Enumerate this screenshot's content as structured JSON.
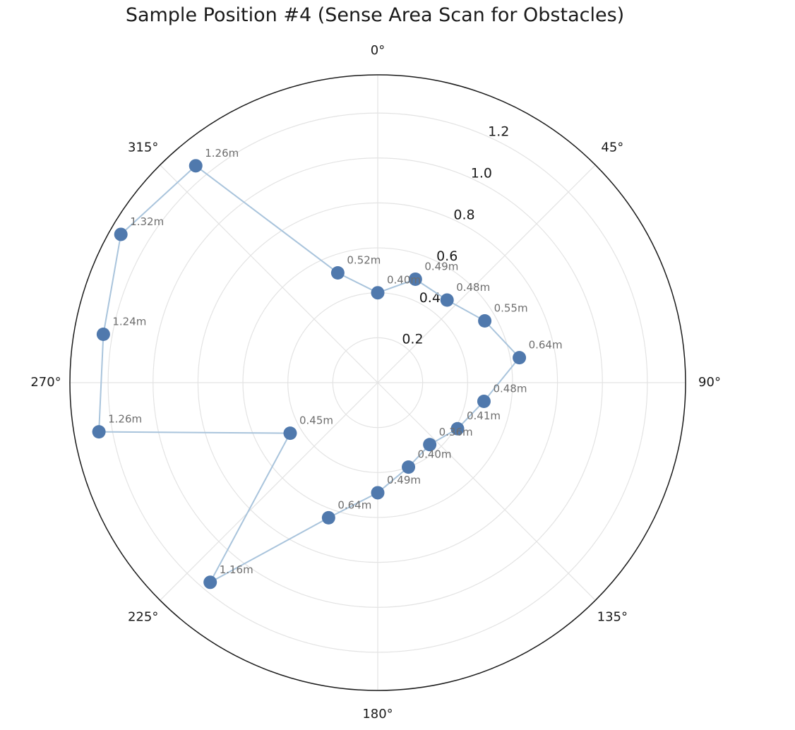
{
  "chart_data": {
    "type": "polar-line",
    "title": "Sample Position #4 (Sense Area Scan for Obstacles)",
    "theta_direction": "clockwise",
    "theta_zero": "top",
    "r_lim": [
      0,
      1.37
    ],
    "r_ticks": [
      {
        "value": 0.2,
        "label": "0.2"
      },
      {
        "value": 0.4,
        "label": "0.4"
      },
      {
        "value": 0.6,
        "label": "0.6"
      },
      {
        "value": 0.8,
        "label": "0.8"
      },
      {
        "value": 1.0,
        "label": "1.0"
      },
      {
        "value": 1.2,
        "label": "1.2"
      }
    ],
    "theta_ticks": [
      {
        "angle": 0,
        "label": "0°"
      },
      {
        "angle": 45,
        "label": "45°"
      },
      {
        "angle": 90,
        "label": "90°"
      },
      {
        "angle": 135,
        "label": "135°"
      },
      {
        "angle": 180,
        "label": "180°"
      },
      {
        "angle": 225,
        "label": "225°"
      },
      {
        "angle": 270,
        "label": "270°"
      },
      {
        "angle": 315,
        "label": "315°"
      }
    ],
    "grid": true,
    "marker_color": "#5079ad",
    "line_color": "#a9c4dc",
    "points": [
      {
        "angle": 0,
        "r": 0.4,
        "label": "0.40m"
      },
      {
        "angle": 20,
        "r": 0.49,
        "label": "0.49m"
      },
      {
        "angle": 40,
        "r": 0.48,
        "label": "0.48m"
      },
      {
        "angle": 60,
        "r": 0.55,
        "label": "0.55m"
      },
      {
        "angle": 80,
        "r": 0.64,
        "label": "0.64m"
      },
      {
        "angle": 100,
        "r": 0.48,
        "label": "0.48m"
      },
      {
        "angle": 120,
        "r": 0.41,
        "label": "0.41m"
      },
      {
        "angle": 140,
        "r": 0.36,
        "label": "0.36m"
      },
      {
        "angle": 160,
        "r": 0.4,
        "label": "0.40m"
      },
      {
        "angle": 180,
        "r": 0.49,
        "label": "0.49m"
      },
      {
        "angle": 200,
        "r": 0.64,
        "label": "0.64m"
      },
      {
        "angle": 220,
        "r": 1.16,
        "label": "1.16m"
      },
      {
        "angle": 240,
        "r": 0.45,
        "label": "0.45m"
      },
      {
        "angle": 260,
        "r": 1.26,
        "label": "1.26m"
      },
      {
        "angle": 280,
        "r": 1.24,
        "label": "1.24m"
      },
      {
        "angle": 300,
        "r": 1.32,
        "label": "1.32m"
      },
      {
        "angle": 320,
        "r": 1.26,
        "label": "1.26m"
      },
      {
        "angle": 340,
        "r": 0.52,
        "label": "0.52m"
      }
    ]
  }
}
